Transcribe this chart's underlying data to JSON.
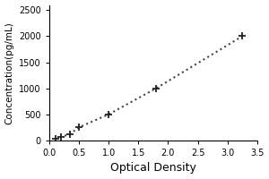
{
  "xlabel": "Optical Density",
  "ylabel": "Concentration(pg/mL)",
  "x_data": [
    0.1,
    0.2,
    0.35,
    0.5,
    1.0,
    1.8,
    3.25
  ],
  "y_data": [
    31.25,
    62.5,
    125,
    250,
    500,
    1000,
    2000
  ],
  "xlim": [
    0,
    3.5
  ],
  "ylim": [
    0,
    2600
  ],
  "xticks": [
    0.0,
    0.5,
    1.0,
    1.5,
    2.0,
    2.5,
    3.0,
    3.5
  ],
  "yticks": [
    0,
    500,
    1000,
    1500,
    2000,
    2500
  ],
  "line_color": "#444444",
  "marker_color": "#222222",
  "linestyle": "dotted",
  "linewidth": 1.5,
  "markersize": 6,
  "markeredgewidth": 1.3,
  "xlabel_fontsize": 9,
  "ylabel_fontsize": 7.5,
  "tick_fontsize": 7,
  "background_color": "#ffffff"
}
